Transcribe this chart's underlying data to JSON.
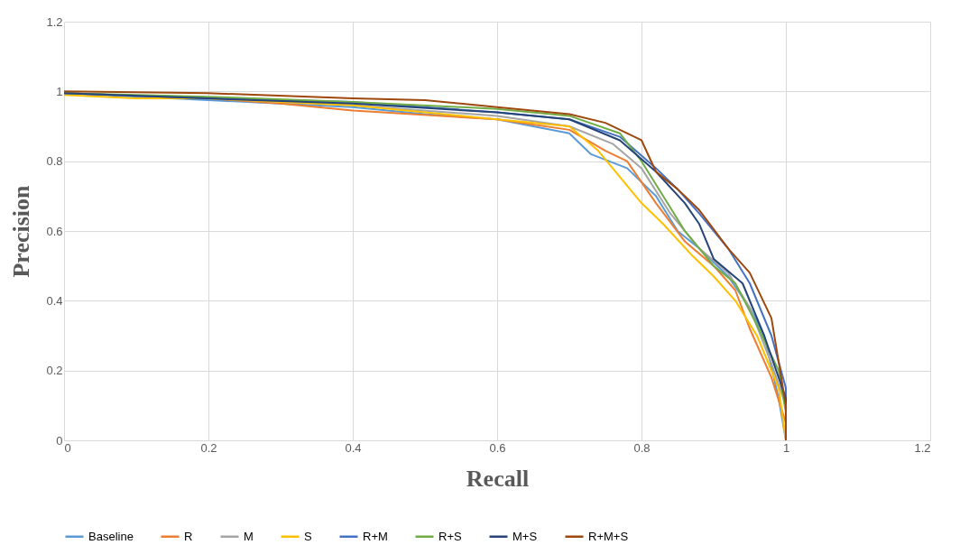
{
  "chart_data": {
    "type": "line",
    "xlabel": "Recall",
    "ylabel": "Precision",
    "xlim": [
      0,
      1.2
    ],
    "ylim": [
      0,
      1.2
    ],
    "xticks": [
      0,
      0.2,
      0.4,
      0.6,
      0.8,
      1,
      1.2
    ],
    "yticks": [
      0,
      0.2,
      0.4,
      0.6,
      0.8,
      1,
      1.2
    ],
    "grid": true,
    "legend": "bottom",
    "marker": "none",
    "line_style": "solid",
    "series": [
      {
        "name": "Baseline",
        "color": "#5b9bd5",
        "x": [
          0,
          0.2,
          0.4,
          0.5,
          0.6,
          0.7,
          0.73,
          0.78,
          0.82,
          0.85,
          0.88,
          0.92,
          0.95,
          0.97,
          0.99,
          1.0
        ],
        "values": [
          0.995,
          0.975,
          0.955,
          0.935,
          0.92,
          0.88,
          0.82,
          0.78,
          0.7,
          0.6,
          0.55,
          0.47,
          0.38,
          0.3,
          0.12,
          0.0
        ]
      },
      {
        "name": "R",
        "color": "#ed7d31",
        "x": [
          0,
          0.2,
          0.3,
          0.4,
          0.6,
          0.7,
          0.75,
          0.78,
          0.82,
          0.86,
          0.9,
          0.93,
          0.95,
          0.98,
          1.0,
          1.0
        ],
        "values": [
          0.995,
          0.98,
          0.965,
          0.945,
          0.92,
          0.89,
          0.83,
          0.8,
          0.68,
          0.57,
          0.5,
          0.43,
          0.32,
          0.18,
          0.05,
          0.0
        ]
      },
      {
        "name": "M",
        "color": "#a5a5a5",
        "x": [
          0,
          0.2,
          0.4,
          0.6,
          0.7,
          0.76,
          0.8,
          0.84,
          0.88,
          0.92,
          0.95,
          0.98,
          1.0,
          1.0
        ],
        "values": [
          0.995,
          0.98,
          0.96,
          0.93,
          0.9,
          0.85,
          0.78,
          0.65,
          0.55,
          0.48,
          0.38,
          0.22,
          0.1,
          0.0
        ]
      },
      {
        "name": "S",
        "color": "#ffc000",
        "x": [
          0,
          0.1,
          0.2,
          0.4,
          0.6,
          0.7,
          0.74,
          0.76,
          0.8,
          0.83,
          0.87,
          0.9,
          0.93,
          0.96,
          0.99,
          1.0
        ],
        "values": [
          0.99,
          0.98,
          0.98,
          0.96,
          0.92,
          0.9,
          0.83,
          0.78,
          0.68,
          0.62,
          0.53,
          0.47,
          0.4,
          0.3,
          0.15,
          0.0
        ]
      },
      {
        "name": "R+M",
        "color": "#4472c4",
        "x": [
          0,
          0.2,
          0.4,
          0.6,
          0.7,
          0.77,
          0.82,
          0.85,
          0.88,
          0.92,
          0.95,
          0.98,
          1.0,
          1.0
        ],
        "values": [
          0.995,
          0.98,
          0.97,
          0.94,
          0.92,
          0.87,
          0.78,
          0.72,
          0.65,
          0.55,
          0.45,
          0.3,
          0.15,
          0.0
        ]
      },
      {
        "name": "R+S",
        "color": "#70ad47",
        "x": [
          0,
          0.2,
          0.4,
          0.6,
          0.7,
          0.77,
          0.8,
          0.83,
          0.86,
          0.9,
          0.93,
          0.96,
          0.99,
          1.0,
          1.0
        ],
        "values": [
          0.995,
          0.985,
          0.97,
          0.95,
          0.93,
          0.88,
          0.8,
          0.7,
          0.6,
          0.5,
          0.45,
          0.33,
          0.2,
          0.08,
          0.0
        ]
      },
      {
        "name": "M+S",
        "color": "#264478",
        "x": [
          0,
          0.2,
          0.4,
          0.6,
          0.7,
          0.77,
          0.82,
          0.86,
          0.88,
          0.9,
          0.94,
          0.97,
          1.0,
          1.0
        ],
        "values": [
          0.995,
          0.98,
          0.965,
          0.94,
          0.92,
          0.86,
          0.77,
          0.68,
          0.62,
          0.52,
          0.45,
          0.3,
          0.12,
          0.0
        ]
      },
      {
        "name": "R+M+S",
        "color": "#9e480e",
        "x": [
          0,
          0.2,
          0.4,
          0.5,
          0.6,
          0.7,
          0.75,
          0.8,
          0.82,
          0.85,
          0.88,
          0.92,
          0.95,
          0.98,
          1.0,
          1.0
        ],
        "values": [
          1.0,
          0.995,
          0.98,
          0.975,
          0.955,
          0.935,
          0.91,
          0.86,
          0.77,
          0.72,
          0.66,
          0.55,
          0.48,
          0.35,
          0.1,
          0.0
        ]
      }
    ]
  }
}
